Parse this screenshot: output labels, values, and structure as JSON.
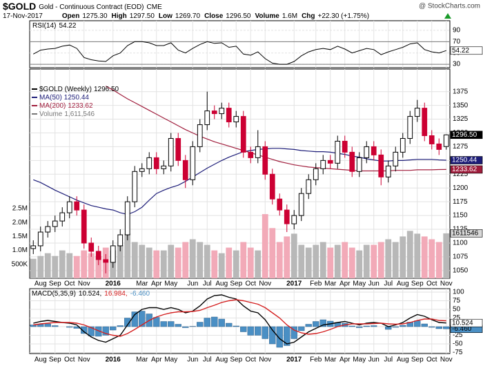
{
  "header": {
    "symbol": "$GOLD",
    "name": "Gold - Continuous Contract (EOD)",
    "exchange": "CME",
    "watermark": "@ StockCharts.com",
    "date": "17-Nov-2017",
    "quote": [
      {
        "label": "Open",
        "value": "1275.30"
      },
      {
        "label": "High",
        "value": "1297.50"
      },
      {
        "label": "Low",
        "value": "1269.70"
      },
      {
        "label": "Close",
        "value": "1296.50"
      },
      {
        "label": "Volume",
        "value": "1.6M"
      },
      {
        "label": "Chg",
        "value": "+22.30 (+1.75%)"
      }
    ]
  },
  "chart_data": [
    {
      "type": "line",
      "name": "RSI(14)",
      "last_label": "54.22",
      "color": "#000000",
      "values": [
        48,
        55,
        57,
        58,
        62,
        64,
        58,
        42,
        38,
        36,
        35,
        45,
        50,
        63,
        70,
        70,
        68,
        63,
        63,
        68,
        55,
        50,
        58,
        65,
        70,
        67,
        68,
        60,
        62,
        48,
        46,
        52,
        40,
        32,
        30,
        30,
        35,
        45,
        52,
        56,
        58,
        56,
        62,
        57,
        50,
        54,
        58,
        56,
        47,
        52,
        56,
        60,
        66,
        68,
        56,
        52,
        50,
        54.22
      ],
      "ylim": [
        24,
        107
      ],
      "yticks": [
        30,
        50,
        70,
        90
      ],
      "reference_lines": [
        30,
        70
      ],
      "grid": true
    },
    {
      "type": "candlestick",
      "name": "$GOLD (Weekly)",
      "last_label": "1296.50",
      "categories": [
        null,
        "Aug",
        null,
        "Sep",
        null,
        "Oct",
        null,
        "Nov",
        null,
        null,
        null,
        "2016",
        null,
        null,
        null,
        "Mar",
        null,
        "Apr",
        null,
        "May",
        null,
        null,
        "Jun",
        null,
        "Jul",
        null,
        "Aug",
        null,
        "Sep",
        null,
        "Oct",
        null,
        "Nov",
        null,
        null,
        null,
        "2017",
        null,
        null,
        "Feb",
        null,
        "Mar",
        null,
        "Apr",
        null,
        "May",
        null,
        "Jun",
        null,
        "Jul",
        null,
        "Aug",
        null,
        "Sep",
        null,
        "Oct",
        null,
        "Nov"
      ],
      "open": [
        1090,
        1095,
        1120,
        1130,
        1140,
        1155,
        1175,
        1160,
        1100,
        1085,
        1070,
        1065,
        1095,
        1115,
        1175,
        1230,
        1235,
        1255,
        1235,
        1240,
        1290,
        1250,
        1215,
        1275,
        1315,
        1340,
        1335,
        1345,
        1320,
        1330,
        1265,
        1255,
        1275,
        1225,
        1180,
        1160,
        1135,
        1150,
        1190,
        1215,
        1235,
        1250,
        1245,
        1285,
        1265,
        1230,
        1255,
        1275,
        1260,
        1220,
        1240,
        1265,
        1290,
        1330,
        1345,
        1295,
        1280,
        1275.3
      ],
      "high": [
        1105,
        1130,
        1140,
        1150,
        1165,
        1185,
        1185,
        1170,
        1110,
        1095,
        1080,
        1105,
        1125,
        1185,
        1240,
        1245,
        1265,
        1265,
        1250,
        1300,
        1300,
        1260,
        1285,
        1325,
        1375,
        1350,
        1355,
        1355,
        1340,
        1340,
        1275,
        1305,
        1285,
        1235,
        1190,
        1170,
        1160,
        1200,
        1225,
        1245,
        1260,
        1260,
        1295,
        1295,
        1275,
        1265,
        1285,
        1285,
        1270,
        1250,
        1275,
        1300,
        1340,
        1360,
        1355,
        1305,
        1290,
        1297.5
      ],
      "low": [
        1080,
        1085,
        1110,
        1120,
        1130,
        1145,
        1150,
        1090,
        1075,
        1060,
        1045,
        1055,
        1085,
        1105,
        1165,
        1220,
        1225,
        1225,
        1225,
        1230,
        1240,
        1200,
        1205,
        1265,
        1305,
        1325,
        1325,
        1310,
        1310,
        1255,
        1245,
        1245,
        1215,
        1170,
        1150,
        1120,
        1125,
        1140,
        1180,
        1205,
        1225,
        1235,
        1235,
        1255,
        1220,
        1220,
        1245,
        1250,
        1205,
        1210,
        1230,
        1255,
        1280,
        1320,
        1285,
        1270,
        1260,
        1269.7
      ],
      "close": [
        1095,
        1120,
        1130,
        1140,
        1155,
        1175,
        1160,
        1100,
        1085,
        1070,
        1065,
        1095,
        1115,
        1175,
        1230,
        1235,
        1255,
        1235,
        1240,
        1290,
        1250,
        1215,
        1275,
        1315,
        1340,
        1335,
        1345,
        1320,
        1330,
        1265,
        1255,
        1275,
        1225,
        1180,
        1160,
        1135,
        1150,
        1190,
        1215,
        1235,
        1250,
        1245,
        1285,
        1265,
        1230,
        1255,
        1275,
        1260,
        1220,
        1240,
        1265,
        1290,
        1330,
        1345,
        1295,
        1280,
        1270,
        1296.5
      ],
      "up_color": "#000000",
      "down_color": "#cc0033",
      "ylim": [
        1036,
        1416
      ],
      "yticks": [
        1050,
        1075,
        1100,
        1125,
        1150,
        1175,
        1200,
        1225,
        1250,
        1275,
        1300,
        1325,
        1350,
        1375
      ],
      "grid": true,
      "series": [
        {
          "name": "MA(50)",
          "last_label": "1250.44",
          "color": "#1c1c78",
          "values": [
            1215,
            1210,
            1203,
            1196,
            1190,
            1184,
            1178,
            1173,
            1168,
            1165,
            1162,
            1160,
            1155,
            1152,
            1157,
            1165,
            1178,
            1190,
            1196,
            1201,
            1205,
            1212,
            1220,
            1228,
            1236,
            1243,
            1250,
            1256,
            1261,
            1266,
            1268,
            1270,
            1271,
            1272,
            1272,
            1271,
            1270,
            1268,
            1267,
            1266,
            1266,
            1265,
            1263,
            1261,
            1258,
            1256,
            1253,
            1251,
            1249,
            1249,
            1250,
            1250,
            1251,
            1252,
            1252,
            1252,
            1251,
            1250.44
          ]
        },
        {
          "name": "MA(200)",
          "last_label": "1233.62",
          "color": "#a01d3c",
          "values": [
            null,
            null,
            null,
            null,
            null,
            null,
            null,
            null,
            null,
            null,
            1385,
            1378,
            1370,
            1362,
            1355,
            1348,
            1341,
            1334,
            1327,
            1320,
            1313,
            1306,
            1300,
            1294,
            1289,
            1284,
            1280,
            1276,
            1272,
            1268,
            1264,
            1260,
            1256,
            1252,
            1248,
            1245,
            1242,
            1240,
            1238,
            1237,
            1236,
            1235,
            1234,
            1233,
            1232,
            1231,
            1231,
            1231,
            1231,
            1231,
            1232,
            1232,
            1232,
            1233,
            1233,
            1233,
            1233.5,
            1233.62
          ]
        }
      ],
      "volume": {
        "name": "Volume",
        "legend_label": "1,611,546",
        "axis_label": "1611546",
        "up_color": "#b8b8b8",
        "down_color": "#f2aab8",
        "values": [
          700000,
          800000,
          900000,
          800000,
          1000000,
          900000,
          800000,
          1000000,
          900000,
          800000,
          1100000,
          1000000,
          1200000,
          1600000,
          1300000,
          1200000,
          1100000,
          1000000,
          1000000,
          1200000,
          1100000,
          1300000,
          1400000,
          1300000,
          1200000,
          1000000,
          900000,
          1100000,
          1000000,
          1300000,
          1100000,
          1000000,
          2300000,
          1800000,
          1300000,
          1500000,
          1600000,
          1200000,
          1100000,
          1200000,
          1300000,
          1100000,
          1200000,
          1300000,
          1100000,
          1000000,
          1200000,
          1200000,
          1300000,
          1400000,
          1300000,
          1500000,
          1700000,
          1600000,
          1500000,
          1400000,
          1300000,
          1611546
        ],
        "ylim": [
          0,
          7500000
        ],
        "yticks": [
          {
            "value": 500000,
            "label": "500K"
          },
          {
            "value": 1000000,
            "label": "1.0M"
          },
          {
            "value": 1500000,
            "label": "1.5M"
          },
          {
            "value": 2000000,
            "label": "2.0M"
          },
          {
            "value": 2500000,
            "label": "2.5M"
          }
        ]
      }
    },
    {
      "type": "macd",
      "name": "MACD(5,35,9)",
      "categories": [
        null,
        "Aug",
        null,
        "Sep",
        null,
        "Oct",
        null,
        "Nov",
        null,
        null,
        null,
        "2016",
        null,
        null,
        null,
        "Mar",
        null,
        "Apr",
        null,
        "May",
        null,
        null,
        "Jun",
        null,
        "Jul",
        null,
        "Aug",
        null,
        "Sep",
        null,
        "Oct",
        null,
        "Nov",
        null,
        null,
        null,
        "2017",
        null,
        null,
        "Feb",
        null,
        "Mar",
        null,
        "Apr",
        null,
        "May",
        null,
        "Jun",
        null,
        "Jul",
        null,
        "Aug",
        null,
        "Sep",
        null,
        "Oct",
        null,
        "Nov"
      ],
      "ylim": [
        -78,
        110
      ],
      "yticks": [
        -75,
        -50,
        -25,
        0,
        25,
        50,
        75,
        100
      ],
      "grid": true,
      "series": [
        {
          "style": "bar",
          "color": "#4a8fc4",
          "legend_label": "-6.460",
          "axis_label": "-6.460",
          "values": [
            5,
            7,
            8,
            3,
            0,
            -2,
            -5,
            -20,
            -27,
            -28,
            -25,
            -10,
            3,
            25,
            43,
            45,
            37,
            27,
            15,
            15,
            7,
            -3,
            1,
            13,
            25,
            28,
            22,
            10,
            2,
            -15,
            -25,
            -25,
            -35,
            -50,
            -60,
            -55,
            -35,
            -12,
            7,
            15,
            20,
            16,
            12,
            10,
            2,
            -3,
            2,
            3,
            0,
            -8,
            -2,
            4,
            13,
            17,
            8,
            -2,
            -6,
            -6.46
          ]
        },
        {
          "style": "line",
          "color": "#000000",
          "legend_label": "10.524,",
          "axis_label": "10.524",
          "values": [
            10,
            15,
            18,
            15,
            12,
            10,
            5,
            -15,
            -30,
            -40,
            -45,
            -35,
            -25,
            5,
            35,
            50,
            55,
            55,
            50,
            55,
            50,
            40,
            45,
            60,
            80,
            90,
            92,
            85,
            80,
            60,
            45,
            40,
            20,
            -10,
            -35,
            -50,
            -45,
            -30,
            -15,
            -5,
            5,
            8,
            12,
            15,
            10,
            5,
            10,
            12,
            10,
            0,
            5,
            12,
            25,
            35,
            30,
            20,
            12,
            10.524
          ]
        },
        {
          "style": "line",
          "color": "#d42020",
          "legend_label": "16.984,",
          "values": [
            5,
            8,
            10,
            12,
            12,
            12,
            10,
            5,
            -3,
            -12,
            -20,
            -25,
            -28,
            -20,
            -8,
            5,
            18,
            28,
            35,
            40,
            43,
            43,
            44,
            47,
            55,
            62,
            70,
            75,
            78,
            75,
            70,
            65,
            55,
            40,
            25,
            5,
            -10,
            -18,
            -22,
            -20,
            -15,
            -8,
            0,
            5,
            8,
            8,
            8,
            9,
            10,
            8,
            7,
            8,
            12,
            18,
            22,
            22,
            18,
            16.984
          ]
        }
      ]
    }
  ]
}
